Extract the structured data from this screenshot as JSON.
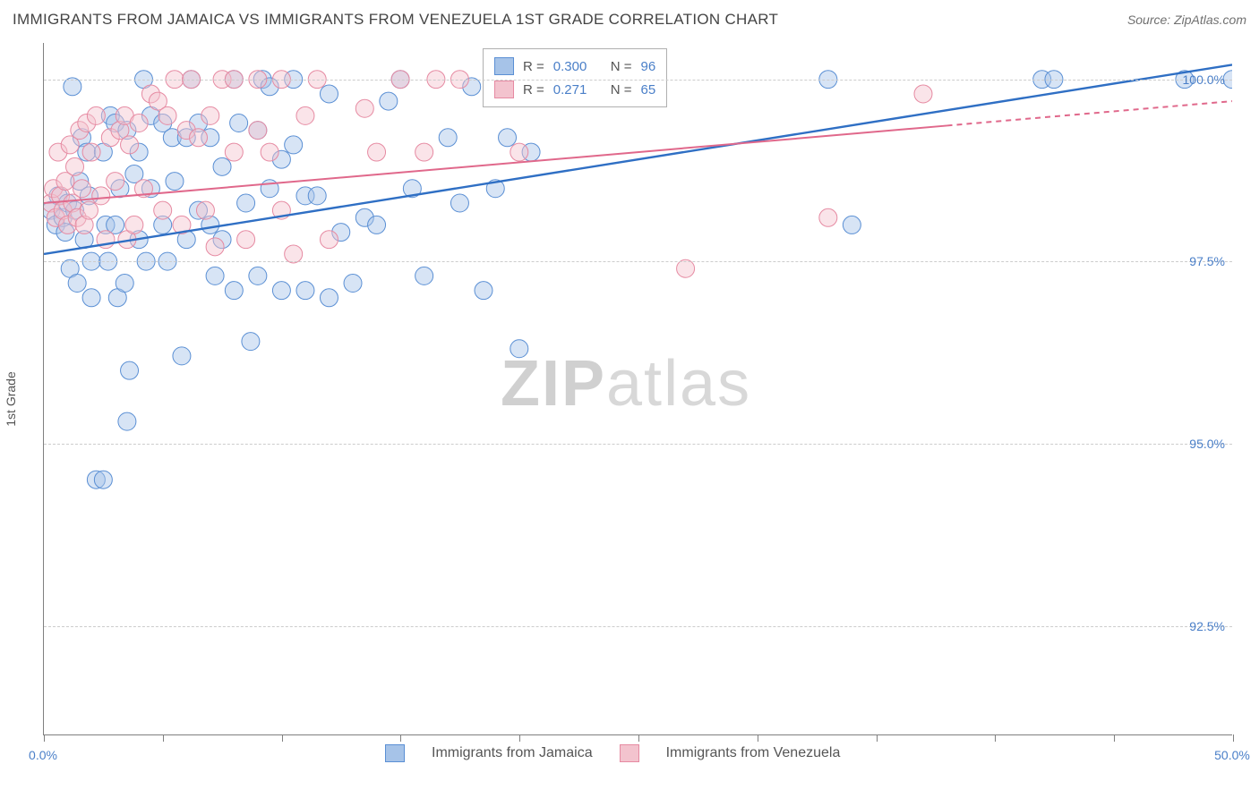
{
  "title": "IMMIGRANTS FROM JAMAICA VS IMMIGRANTS FROM VENEZUELA 1ST GRADE CORRELATION CHART",
  "source": "Source: ZipAtlas.com",
  "ylabel": "1st Grade",
  "watermark": {
    "zip": "ZIP",
    "atlas": "atlas"
  },
  "chart": {
    "type": "scatter",
    "xlim": [
      0,
      50
    ],
    "ylim": [
      91,
      100.5
    ],
    "xtick_positions": [
      0,
      5,
      10,
      15,
      20,
      25,
      30,
      35,
      40,
      45,
      50
    ],
    "xtick_labels": {
      "0": "0.0%",
      "50": "50.0%"
    },
    "ytick_positions": [
      92.5,
      95.0,
      97.5,
      100.0
    ],
    "ytick_labels": [
      "92.5%",
      "95.0%",
      "97.5%",
      "100.0%"
    ],
    "marker_radius": 10,
    "marker_opacity": 0.45,
    "background": "#ffffff",
    "grid_color": "#cccccc",
    "series": [
      {
        "name": "Immigrants from Jamaica",
        "color_fill": "#a6c3e8",
        "color_stroke": "#5a8fd4",
        "R": "0.300",
        "N": "96",
        "trend": {
          "x1": 0,
          "y1": 97.6,
          "x2": 50,
          "y2": 100.2,
          "color": "#2f6fc4",
          "width": 2.4
        },
        "points": [
          [
            0.3,
            98.2
          ],
          [
            0.5,
            98.0
          ],
          [
            0.6,
            98.4
          ],
          [
            0.8,
            98.1
          ],
          [
            0.9,
            97.9
          ],
          [
            1.0,
            98.3
          ],
          [
            1.1,
            97.4
          ],
          [
            1.2,
            99.9
          ],
          [
            1.3,
            98.2
          ],
          [
            1.4,
            97.2
          ],
          [
            1.5,
            98.6
          ],
          [
            1.6,
            99.2
          ],
          [
            1.7,
            97.8
          ],
          [
            1.8,
            99.0
          ],
          [
            1.9,
            98.4
          ],
          [
            2.0,
            97.0
          ],
          [
            2.0,
            97.5
          ],
          [
            2.2,
            94.5
          ],
          [
            2.5,
            94.5
          ],
          [
            2.5,
            99.0
          ],
          [
            2.6,
            98.0
          ],
          [
            2.7,
            97.5
          ],
          [
            2.8,
            99.5
          ],
          [
            3.0,
            98.0
          ],
          [
            3.0,
            99.4
          ],
          [
            3.1,
            97.0
          ],
          [
            3.2,
            98.5
          ],
          [
            3.4,
            97.2
          ],
          [
            3.5,
            99.3
          ],
          [
            3.5,
            95.3
          ],
          [
            3.6,
            96.0
          ],
          [
            3.8,
            98.7
          ],
          [
            4.0,
            99.0
          ],
          [
            4.0,
            97.8
          ],
          [
            4.2,
            100.0
          ],
          [
            4.3,
            97.5
          ],
          [
            4.5,
            98.5
          ],
          [
            4.5,
            99.5
          ],
          [
            5.0,
            98.0
          ],
          [
            5.0,
            99.4
          ],
          [
            5.2,
            97.5
          ],
          [
            5.4,
            99.2
          ],
          [
            5.5,
            98.6
          ],
          [
            5.8,
            96.2
          ],
          [
            6.0,
            99.2
          ],
          [
            6.0,
            97.8
          ],
          [
            6.2,
            100.0
          ],
          [
            6.5,
            98.2
          ],
          [
            6.5,
            99.4
          ],
          [
            7.0,
            98.0
          ],
          [
            7.0,
            99.2
          ],
          [
            7.2,
            97.3
          ],
          [
            7.5,
            98.8
          ],
          [
            7.5,
            97.8
          ],
          [
            8.0,
            100.0
          ],
          [
            8.0,
            97.1
          ],
          [
            8.2,
            99.4
          ],
          [
            8.5,
            98.3
          ],
          [
            8.7,
            96.4
          ],
          [
            9.0,
            99.3
          ],
          [
            9.0,
            97.3
          ],
          [
            9.2,
            100.0
          ],
          [
            9.5,
            99.9
          ],
          [
            9.5,
            98.5
          ],
          [
            10.0,
            97.1
          ],
          [
            10.0,
            98.9
          ],
          [
            10.5,
            99.1
          ],
          [
            10.5,
            100.0
          ],
          [
            11.0,
            97.1
          ],
          [
            11.0,
            98.4
          ],
          [
            11.5,
            98.4
          ],
          [
            12.0,
            97.0
          ],
          [
            12.0,
            99.8
          ],
          [
            12.5,
            97.9
          ],
          [
            13.0,
            97.2
          ],
          [
            13.5,
            98.1
          ],
          [
            14.0,
            98.0
          ],
          [
            14.5,
            99.7
          ],
          [
            15.0,
            100.0
          ],
          [
            15.5,
            98.5
          ],
          [
            16.0,
            97.3
          ],
          [
            17.0,
            99.2
          ],
          [
            17.5,
            98.3
          ],
          [
            18.0,
            99.9
          ],
          [
            18.5,
            97.1
          ],
          [
            19.0,
            98.5
          ],
          [
            19.5,
            99.2
          ],
          [
            20.0,
            96.3
          ],
          [
            20.5,
            99.0
          ],
          [
            24.0,
            100.0
          ],
          [
            33.0,
            100.0
          ],
          [
            34.0,
            98.0
          ],
          [
            42.0,
            100.0
          ],
          [
            42.5,
            100.0
          ],
          [
            48.0,
            100.0
          ],
          [
            50.0,
            100.0
          ]
        ]
      },
      {
        "name": "Immigrants from Venezuela",
        "color_fill": "#f3c3ce",
        "color_stroke": "#e68aa2",
        "R": "0.271",
        "N": "65",
        "trend": {
          "x1": 0,
          "y1": 98.3,
          "x2": 50,
          "y2": 99.7,
          "color": "#e0688b",
          "width": 2.0,
          "dash": true,
          "solid_until": 38
        },
        "points": [
          [
            0.3,
            98.3
          ],
          [
            0.4,
            98.5
          ],
          [
            0.5,
            98.1
          ],
          [
            0.6,
            99.0
          ],
          [
            0.7,
            98.4
          ],
          [
            0.8,
            98.2
          ],
          [
            0.9,
            98.6
          ],
          [
            1.0,
            98.0
          ],
          [
            1.1,
            99.1
          ],
          [
            1.2,
            98.3
          ],
          [
            1.3,
            98.8
          ],
          [
            1.4,
            98.1
          ],
          [
            1.5,
            99.3
          ],
          [
            1.6,
            98.5
          ],
          [
            1.7,
            98.0
          ],
          [
            1.8,
            99.4
          ],
          [
            1.9,
            98.2
          ],
          [
            2.0,
            99.0
          ],
          [
            2.2,
            99.5
          ],
          [
            2.4,
            98.4
          ],
          [
            2.6,
            97.8
          ],
          [
            2.8,
            99.2
          ],
          [
            3.0,
            98.6
          ],
          [
            3.2,
            99.3
          ],
          [
            3.4,
            99.5
          ],
          [
            3.5,
            97.8
          ],
          [
            3.6,
            99.1
          ],
          [
            3.8,
            98.0
          ],
          [
            4.0,
            99.4
          ],
          [
            4.2,
            98.5
          ],
          [
            4.5,
            99.8
          ],
          [
            4.8,
            99.7
          ],
          [
            5.0,
            98.2
          ],
          [
            5.2,
            99.5
          ],
          [
            5.5,
            100.0
          ],
          [
            5.8,
            98.0
          ],
          [
            6.0,
            99.3
          ],
          [
            6.2,
            100.0
          ],
          [
            6.5,
            99.2
          ],
          [
            6.8,
            98.2
          ],
          [
            7.0,
            99.5
          ],
          [
            7.2,
            97.7
          ],
          [
            7.5,
            100.0
          ],
          [
            8.0,
            99.0
          ],
          [
            8.0,
            100.0
          ],
          [
            8.5,
            97.8
          ],
          [
            9.0,
            100.0
          ],
          [
            9.0,
            99.3
          ],
          [
            9.5,
            99.0
          ],
          [
            10.0,
            98.2
          ],
          [
            10.0,
            100.0
          ],
          [
            10.5,
            97.6
          ],
          [
            11.0,
            99.5
          ],
          [
            11.5,
            100.0
          ],
          [
            12.0,
            97.8
          ],
          [
            13.5,
            99.6
          ],
          [
            14.0,
            99.0
          ],
          [
            15.0,
            100.0
          ],
          [
            16.0,
            99.0
          ],
          [
            16.5,
            100.0
          ],
          [
            17.5,
            100.0
          ],
          [
            20.0,
            99.0
          ],
          [
            27.0,
            97.4
          ],
          [
            33.0,
            98.1
          ],
          [
            37.0,
            99.8
          ]
        ]
      }
    ]
  },
  "legend_top": {
    "r_label": "R =",
    "n_label": "N ="
  },
  "legend_bottom_labels": [
    "Immigrants from Jamaica",
    "Immigrants from Venezuela"
  ]
}
